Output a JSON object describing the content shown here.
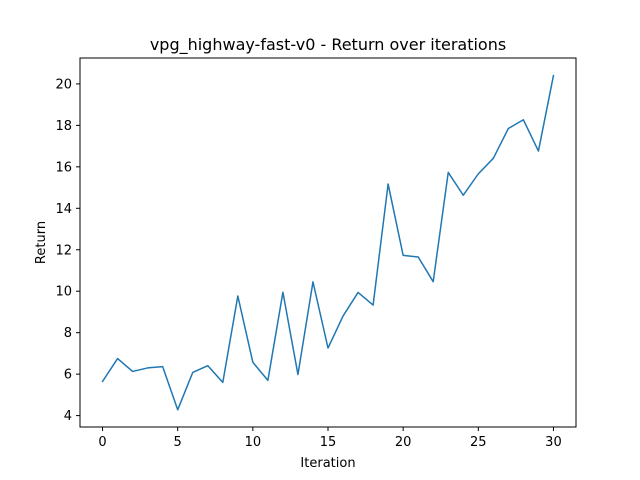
{
  "chart_data": {
    "type": "line",
    "title": "vpg_highway-fast-v0 - Return over iterations",
    "xlabel": "Iteration",
    "ylabel": "Return",
    "xlim": [
      -1.5,
      31.5
    ],
    "ylim": [
      3.45,
      21.25
    ],
    "xticks": [
      0,
      5,
      10,
      15,
      20,
      25,
      30
    ],
    "yticks": [
      4,
      6,
      8,
      10,
      12,
      14,
      16,
      18,
      20
    ],
    "grid": false,
    "line_color": "#1f77b4",
    "series": [
      {
        "x": [
          0,
          1,
          2,
          3,
          4,
          5,
          6,
          7,
          8,
          9,
          10,
          11,
          12,
          13,
          14,
          15,
          16,
          17,
          18,
          19,
          20,
          21,
          22,
          23,
          24,
          25,
          26,
          27,
          28,
          29,
          30
        ],
        "values": [
          5.65,
          6.75,
          6.13,
          6.3,
          6.36,
          4.28,
          6.08,
          6.41,
          5.6,
          9.77,
          6.57,
          5.7,
          9.95,
          5.98,
          10.45,
          7.26,
          8.8,
          9.94,
          9.33,
          15.17,
          11.73,
          11.65,
          10.46,
          15.73,
          14.63,
          15.66,
          16.41,
          17.85,
          18.27,
          16.76,
          20.4
        ]
      }
    ]
  }
}
